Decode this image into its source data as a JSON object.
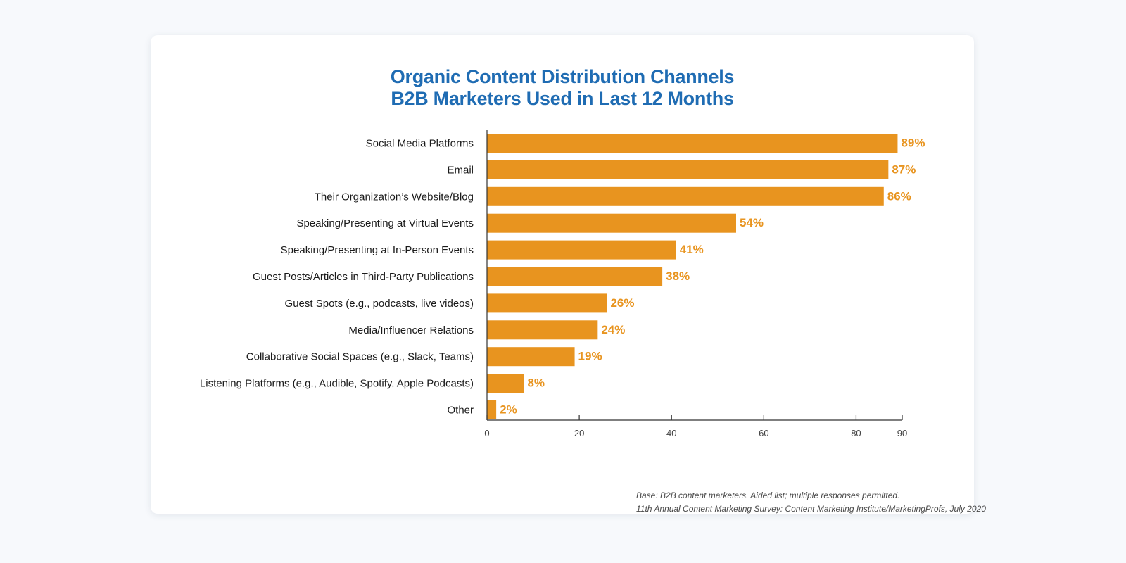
{
  "chart_data": {
    "type": "bar",
    "orientation": "horizontal",
    "title": [
      "Organic Content Distribution Channels",
      "B2B Marketers Used in Last 12 Months"
    ],
    "categories": [
      "Social Media Platforms",
      "Email",
      "Their Organization’s Website/Blog",
      "Speaking/Presenting at Virtual Events",
      "Speaking/Presenting at In-Person Events",
      "Guest Posts/Articles in Third-Party Publications",
      "Guest Spots (e.g., podcasts, live videos)",
      "Media/Influencer Relations",
      "Collaborative Social Spaces (e.g., Slack, Teams)",
      "Listening Platforms (e.g., Audible, Spotify, Apple Podcasts)",
      "Other"
    ],
    "values": [
      89,
      87,
      86,
      54,
      41,
      38,
      26,
      24,
      19,
      8,
      2
    ],
    "value_labels": [
      "89%",
      "87%",
      "86%",
      "54%",
      "41%",
      "38%",
      "26%",
      "24%",
      "19%",
      "8%",
      "2%"
    ],
    "xlim": [
      0,
      90
    ],
    "xticks": [
      0,
      20,
      40,
      60,
      80,
      90
    ],
    "grid": false,
    "bar_color": "#e8941f",
    "label_color": "#e8941f",
    "title_color": "#1f6cb3"
  },
  "footnotes": [
    "Base: B2B content marketers. Aided list; multiple responses permitted.",
    "11th Annual Content Marketing Survey: Content Marketing Institute/MarketingProfs, July 2020"
  ]
}
